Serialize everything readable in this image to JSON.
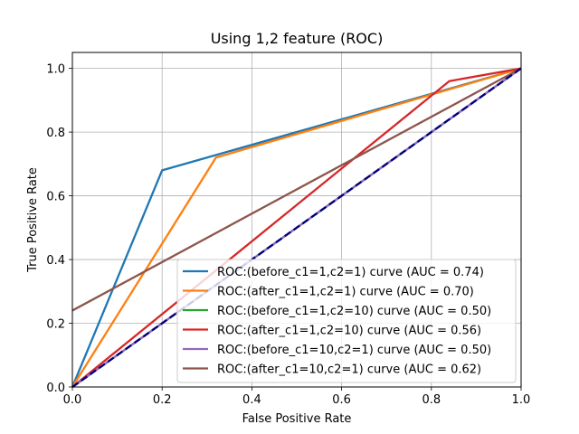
{
  "chart_data": {
    "type": "line",
    "title": "Using 1,2 feature (ROC)",
    "xlabel": "False Positive Rate",
    "ylabel": "True Positive Rate",
    "xlim": [
      0.0,
      1.0
    ],
    "ylim": [
      0.0,
      1.05
    ],
    "xticks": [
      "0.0",
      "0.2",
      "0.4",
      "0.6",
      "0.8",
      "1.0"
    ],
    "yticks": [
      "0.0",
      "0.2",
      "0.4",
      "0.6",
      "0.8",
      "1.0"
    ],
    "grid": true,
    "legend_position": "lower right",
    "series": [
      {
        "name": "ROC:(before_c1=1,c2=1) curve (AUC = 0.74)",
        "color": "#1f77b4",
        "x": [
          0.0,
          0.2,
          1.0
        ],
        "y": [
          0.0,
          0.68,
          1.0
        ]
      },
      {
        "name": "ROC:(after_c1=1,c2=1) curve (AUC = 0.70)",
        "color": "#ff7f0e",
        "x": [
          0.0,
          0.32,
          1.0
        ],
        "y": [
          0.0,
          0.72,
          1.0
        ]
      },
      {
        "name": "ROC:(before_c1=1,c2=10) curve (AUC = 0.50)",
        "color": "#2ca02c",
        "x": [
          0.0,
          1.0
        ],
        "y": [
          0.0,
          1.0
        ]
      },
      {
        "name": "ROC:(after_c1=1,c2=10) curve (AUC = 0.56)",
        "color": "#d62728",
        "x": [
          0.0,
          0.84,
          1.0
        ],
        "y": [
          0.0,
          0.96,
          1.0
        ]
      },
      {
        "name": "ROC:(before_c1=10,c2=1) curve (AUC = 0.50)",
        "color": "#9467bd",
        "x": [
          0.0,
          1.0
        ],
        "y": [
          0.0,
          1.0
        ]
      },
      {
        "name": "ROC:(after_c1=10,c2=1) curve (AUC = 0.62)",
        "color": "#8c564b",
        "x": [
          0.0,
          1.0
        ],
        "y": [
          0.24,
          1.0
        ]
      }
    ],
    "diagonal": {
      "color": "#000080",
      "style": "dashed",
      "x": [
        0.0,
        1.0
      ],
      "y": [
        0.0,
        1.0
      ]
    }
  }
}
